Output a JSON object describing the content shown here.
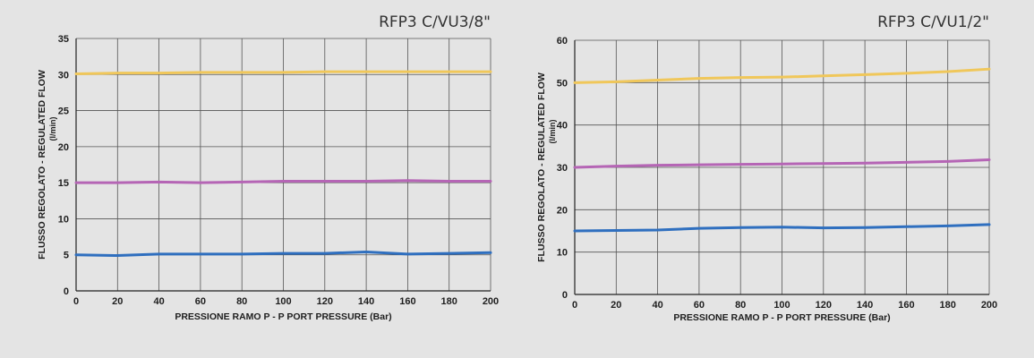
{
  "chart_data": [
    {
      "type": "line",
      "title": "RFP3 C/VU3/8\"",
      "xlabel": "PRESSIONE RAMO P - P PORT PRESSURE (Bar)",
      "ylabel": "FLUSSO REGOLATO - REGULATED FLOW",
      "yunit": "(l/min)",
      "xlim": [
        0,
        200
      ],
      "ylim": [
        0,
        35
      ],
      "xticks": [
        0,
        20,
        40,
        60,
        80,
        100,
        120,
        140,
        160,
        180,
        200
      ],
      "yticks": [
        0,
        5,
        10,
        15,
        20,
        25,
        30,
        35
      ],
      "grid": true,
      "x": [
        0,
        20,
        40,
        60,
        80,
        100,
        120,
        140,
        160,
        180,
        200
      ],
      "series": [
        {
          "color": "#f0c75a",
          "values": [
            30.1,
            30.2,
            30.2,
            30.3,
            30.3,
            30.3,
            30.4,
            30.4,
            30.4,
            30.4,
            30.4
          ]
        },
        {
          "color": "#b565b5",
          "values": [
            15.0,
            15.0,
            15.1,
            15.0,
            15.1,
            15.2,
            15.2,
            15.2,
            15.3,
            15.2,
            15.2
          ]
        },
        {
          "color": "#2f6fbf",
          "values": [
            5.0,
            4.9,
            5.1,
            5.1,
            5.1,
            5.2,
            5.2,
            5.4,
            5.1,
            5.2,
            5.3
          ]
        }
      ]
    },
    {
      "type": "line",
      "title": "RFP3 C/VU1/2\"",
      "xlabel": "PRESSIONE RAMO P - P PORT PRESSURE (Bar)",
      "ylabel": "FLUSSO REGOLATO - REGULATED FLOW",
      "yunit": "(l/min)",
      "xlim": [
        0,
        200
      ],
      "ylim": [
        0,
        60
      ],
      "xticks": [
        0,
        20,
        40,
        60,
        80,
        100,
        120,
        140,
        160,
        180,
        200
      ],
      "yticks": [
        0,
        10,
        20,
        30,
        40,
        50,
        60
      ],
      "grid": true,
      "x": [
        0,
        20,
        40,
        60,
        80,
        100,
        120,
        140,
        160,
        180,
        200
      ],
      "series": [
        {
          "color": "#f0c75a",
          "values": [
            50.0,
            50.2,
            50.6,
            51.0,
            51.2,
            51.3,
            51.6,
            51.9,
            52.2,
            52.6,
            53.2
          ]
        },
        {
          "color": "#b565b5",
          "values": [
            30.0,
            30.3,
            30.5,
            30.6,
            30.7,
            30.8,
            30.9,
            31.0,
            31.2,
            31.4,
            31.8
          ]
        },
        {
          "color": "#2f6fbf",
          "values": [
            15.0,
            15.1,
            15.2,
            15.6,
            15.8,
            15.9,
            15.7,
            15.8,
            16.0,
            16.2,
            16.5
          ]
        }
      ]
    }
  ]
}
